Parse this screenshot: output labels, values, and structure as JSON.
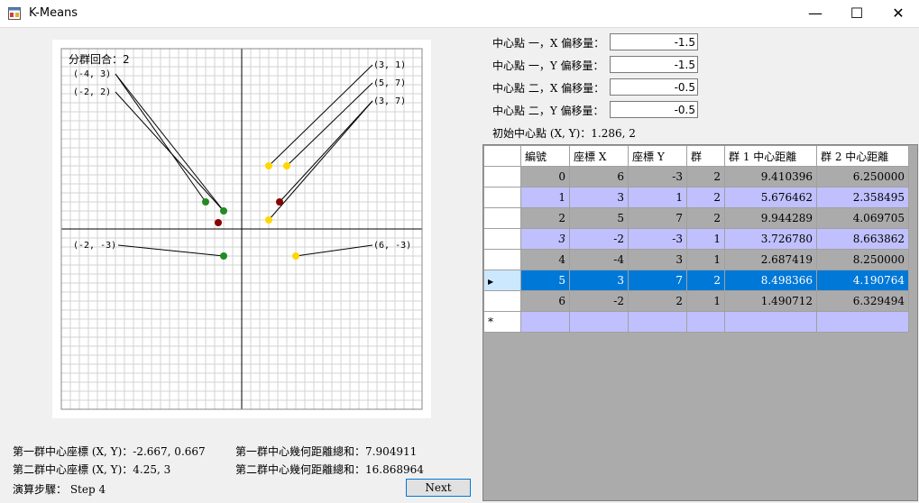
{
  "window": {
    "title": "K-Means",
    "minimize": "—",
    "maximize": "☐",
    "close": "✕"
  },
  "plot": {
    "round_label": "分群回合：2",
    "point_labels": [
      "(-4, 3)",
      "(-2, 2)",
      "(3, 1)",
      "(5, 7)",
      "(3, 7)",
      "(-2, -3)",
      "(6, -3)"
    ],
    "colors": {
      "green": "#228b22",
      "yellow": "#ffd700",
      "darkred": "#8b0000",
      "grid": "#d3d3d3",
      "axis": "#000000"
    }
  },
  "offsets": [
    {
      "label": "中心點 一，X 偏移量：",
      "value": "-1.5"
    },
    {
      "label": "中心點 一，Y 偏移量：",
      "value": "-1.5"
    },
    {
      "label": "中心點 二，X 偏移量：",
      "value": "-0.5"
    },
    {
      "label": "中心點 二，Y 偏移量：",
      "value": "-0.5"
    }
  ],
  "initial_center": "初始中心點 (X, Y)：1.286, 2",
  "table": {
    "headers": [
      "編號",
      "座標 X",
      "座標 Y",
      "群",
      "群 1 中心距離",
      "群 2 中心距離"
    ],
    "rows": [
      [
        "0",
        "6",
        "-3",
        "2",
        "9.410396",
        "6.250000"
      ],
      [
        "1",
        "3",
        "1",
        "2",
        "5.676462",
        "2.358495"
      ],
      [
        "2",
        "5",
        "7",
        "2",
        "9.944289",
        "4.069705"
      ],
      [
        "3",
        "-2",
        "-3",
        "1",
        "3.726780",
        "8.663862"
      ],
      [
        "4",
        "-4",
        "3",
        "1",
        "2.687419",
        "8.250000"
      ],
      [
        "5",
        "3",
        "7",
        "2",
        "8.498366",
        "4.190764"
      ],
      [
        "6",
        "-2",
        "2",
        "1",
        "1.490712",
        "6.329494"
      ]
    ],
    "new_row_marker": "*",
    "selected_marker": "▶"
  },
  "stats": {
    "c1_center": "第一群中心座標 (X, Y)：-2.667, 0.667",
    "c2_center": "第二群中心座標 (X, Y)：4.25, 3",
    "c1_dist": "第一群中心幾何距離總和：7.904911",
    "c2_dist": "第二群中心幾何距離總和：16.868964",
    "step": "演算步驟： Step 4"
  },
  "next_button": "Next"
}
